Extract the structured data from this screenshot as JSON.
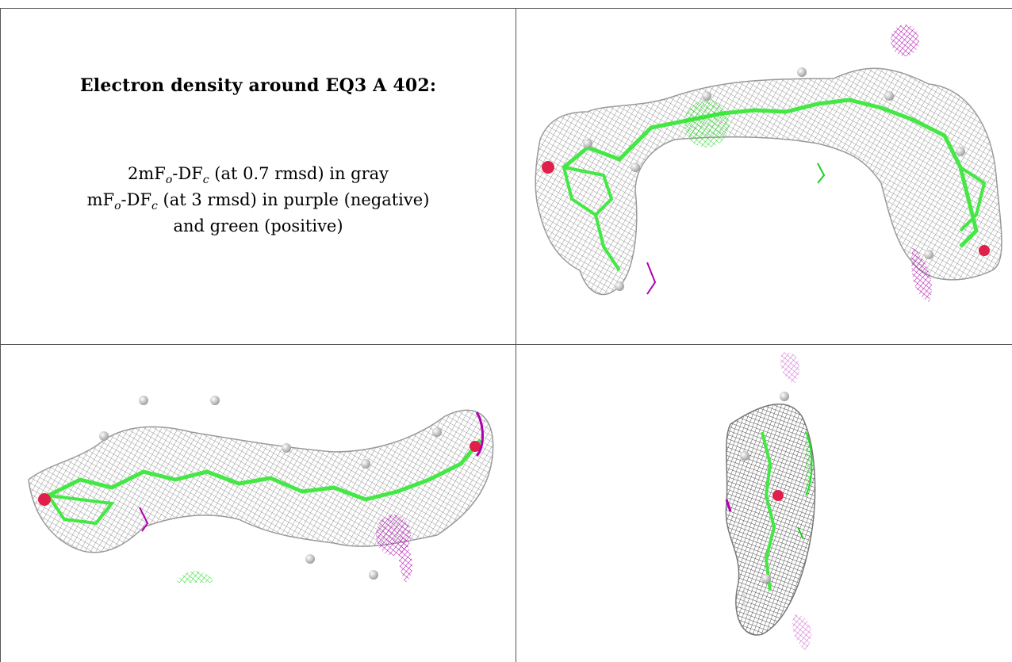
{
  "caption": {
    "title": "Electron density around EQ3 A 402:",
    "line1_parts": [
      "2mF",
      "o",
      "-DF",
      "c",
      " (at 0.7 rmsd) in gray"
    ],
    "line2_parts": [
      "mF",
      "o",
      "-DF",
      "c",
      " (at 3 rmsd) in purple (negative)"
    ],
    "line3": "and green (positive)"
  },
  "colors": {
    "mesh_gray": "#8c8c8c",
    "model_green": "#44e844",
    "negative_purple": "#b000b0",
    "positive_green": "#22cc22",
    "oxygen_red": "#e0204a",
    "atom_white": "#d8d8d8"
  },
  "panels": [
    {
      "name": "view-top-right",
      "description_icon": "electron-density-mesh-icon"
    },
    {
      "name": "view-bottom-left",
      "description_icon": "electron-density-mesh-icon"
    },
    {
      "name": "view-bottom-right",
      "description_icon": "electron-density-mesh-icon"
    }
  ]
}
